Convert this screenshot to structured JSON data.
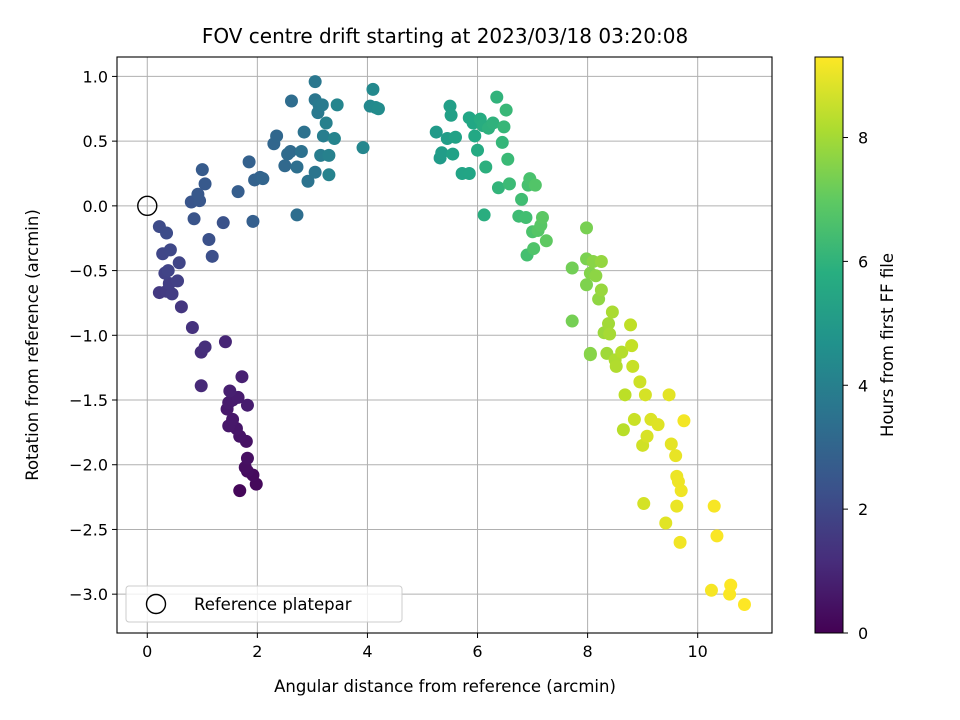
{
  "chart_data": {
    "type": "scatter",
    "title": "FOV centre drift starting at 2023/03/18 03:20:08",
    "xlabel": "Angular distance from reference (arcmin)",
    "ylabel": "Rotation from reference (arcmin)",
    "xlim": [
      -0.55,
      11.35
    ],
    "ylim": [
      -3.3,
      1.15
    ],
    "xticks": [
      0,
      2,
      4,
      6,
      8,
      10
    ],
    "xtick_labels": [
      "0",
      "2",
      "4",
      "6",
      "8",
      "10"
    ],
    "yticks": [
      1.0,
      0.5,
      0.0,
      -0.5,
      -1.0,
      -1.5,
      -2.0,
      -2.5,
      -3.0
    ],
    "ytick_labels": [
      "1.0",
      "0.5",
      "0.0",
      "−0.5",
      "−1.0",
      "−1.5",
      "−2.0",
      "−2.5",
      "−3.0"
    ],
    "grid": true,
    "colormap": "viridis",
    "colorbar": {
      "label": "Hours from first FF file",
      "range": [
        0,
        9.3
      ],
      "ticks": [
        0,
        2,
        4,
        6,
        8
      ],
      "tick_labels": [
        "0",
        "2",
        "4",
        "6",
        "8"
      ]
    },
    "reference_point": {
      "x": 0,
      "y": 0,
      "label": "Reference platepar"
    },
    "legend": {
      "location": "lower-left",
      "entries": [
        "Reference platepar"
      ]
    },
    "points": [
      {
        "x": 1.68,
        "y": -2.2,
        "t": 0.15
      },
      {
        "x": 1.98,
        "y": -2.15,
        "t": 0.2
      },
      {
        "x": 1.92,
        "y": -2.08,
        "t": 0.25
      },
      {
        "x": 1.82,
        "y": -2.05,
        "t": 0.3
      },
      {
        "x": 1.78,
        "y": -2.02,
        "t": 0.35
      },
      {
        "x": 1.82,
        "y": -1.95,
        "t": 0.4
      },
      {
        "x": 1.8,
        "y": -1.82,
        "t": 0.45
      },
      {
        "x": 1.68,
        "y": -1.78,
        "t": 0.5
      },
      {
        "x": 1.62,
        "y": -1.72,
        "t": 0.55
      },
      {
        "x": 1.48,
        "y": -1.7,
        "t": 0.6
      },
      {
        "x": 1.55,
        "y": -1.65,
        "t": 0.62
      },
      {
        "x": 1.45,
        "y": -1.57,
        "t": 0.65
      },
      {
        "x": 1.48,
        "y": -1.52,
        "t": 0.68
      },
      {
        "x": 1.55,
        "y": -1.5,
        "t": 0.7
      },
      {
        "x": 1.65,
        "y": -1.48,
        "t": 0.72
      },
      {
        "x": 1.82,
        "y": -1.54,
        "t": 0.75
      },
      {
        "x": 1.5,
        "y": -1.43,
        "t": 0.8
      },
      {
        "x": 1.72,
        "y": -1.32,
        "t": 0.85
      },
      {
        "x": 1.42,
        "y": -1.05,
        "t": 1.0
      },
      {
        "x": 0.98,
        "y": -1.39,
        "t": 1.1
      },
      {
        "x": 0.98,
        "y": -1.13,
        "t": 1.2
      },
      {
        "x": 1.05,
        "y": -1.09,
        "t": 1.25
      },
      {
        "x": 0.82,
        "y": -0.94,
        "t": 1.35
      },
      {
        "x": 0.62,
        "y": -0.78,
        "t": 1.45
      },
      {
        "x": 0.22,
        "y": -0.67,
        "t": 1.55
      },
      {
        "x": 0.35,
        "y": -0.66,
        "t": 1.6
      },
      {
        "x": 0.45,
        "y": -0.68,
        "t": 1.65
      },
      {
        "x": 0.4,
        "y": -0.6,
        "t": 1.7
      },
      {
        "x": 0.55,
        "y": -0.58,
        "t": 1.75
      },
      {
        "x": 0.32,
        "y": -0.52,
        "t": 1.8
      },
      {
        "x": 0.38,
        "y": -0.5,
        "t": 1.85
      },
      {
        "x": 0.58,
        "y": -0.44,
        "t": 1.9
      },
      {
        "x": 0.28,
        "y": -0.37,
        "t": 1.95
      },
      {
        "x": 0.42,
        "y": -0.34,
        "t": 2.0
      },
      {
        "x": 0.22,
        "y": -0.16,
        "t": 2.1
      },
      {
        "x": 0.35,
        "y": -0.21,
        "t": 2.15
      },
      {
        "x": 1.18,
        "y": -0.39,
        "t": 2.25
      },
      {
        "x": 1.12,
        "y": -0.26,
        "t": 2.3
      },
      {
        "x": 1.38,
        "y": -0.13,
        "t": 2.35
      },
      {
        "x": 0.85,
        "y": -0.1,
        "t": 2.4
      },
      {
        "x": 0.8,
        "y": 0.03,
        "t": 2.45
      },
      {
        "x": 0.95,
        "y": 0.04,
        "t": 2.5
      },
      {
        "x": 0.92,
        "y": 0.09,
        "t": 2.55
      },
      {
        "x": 1.05,
        "y": 0.17,
        "t": 2.6
      },
      {
        "x": 1.0,
        "y": 0.28,
        "t": 2.65
      },
      {
        "x": 1.65,
        "y": 0.11,
        "t": 2.75
      },
      {
        "x": 1.92,
        "y": -0.12,
        "t": 2.8
      },
      {
        "x": 1.85,
        "y": 0.34,
        "t": 2.85
      },
      {
        "x": 1.95,
        "y": 0.2,
        "t": 2.9
      },
      {
        "x": 2.05,
        "y": 0.22,
        "t": 2.95
      },
      {
        "x": 2.1,
        "y": 0.21,
        "t": 3.0
      },
      {
        "x": 2.3,
        "y": 0.48,
        "t": 3.05
      },
      {
        "x": 2.35,
        "y": 0.54,
        "t": 3.1
      },
      {
        "x": 2.5,
        "y": 0.31,
        "t": 3.15
      },
      {
        "x": 2.6,
        "y": 0.42,
        "t": 3.2
      },
      {
        "x": 2.55,
        "y": 0.4,
        "t": 3.25
      },
      {
        "x": 2.62,
        "y": 0.81,
        "t": 3.3
      },
      {
        "x": 2.72,
        "y": -0.07,
        "t": 3.35
      },
      {
        "x": 2.72,
        "y": 0.3,
        "t": 3.4
      },
      {
        "x": 2.8,
        "y": 0.42,
        "t": 3.45
      },
      {
        "x": 2.85,
        "y": 0.57,
        "t": 3.5
      },
      {
        "x": 2.92,
        "y": 0.19,
        "t": 3.55
      },
      {
        "x": 3.05,
        "y": 0.26,
        "t": 3.6
      },
      {
        "x": 3.05,
        "y": 0.82,
        "t": 3.65
      },
      {
        "x": 3.05,
        "y": 0.96,
        "t": 3.7
      },
      {
        "x": 3.1,
        "y": 0.72,
        "t": 3.75
      },
      {
        "x": 3.12,
        "y": 0.78,
        "t": 3.8
      },
      {
        "x": 3.18,
        "y": 0.78,
        "t": 3.85
      },
      {
        "x": 3.15,
        "y": 0.39,
        "t": 3.9
      },
      {
        "x": 3.2,
        "y": 0.54,
        "t": 3.95
      },
      {
        "x": 3.25,
        "y": 0.64,
        "t": 4.0
      },
      {
        "x": 3.3,
        "y": 0.39,
        "t": 4.05
      },
      {
        "x": 3.3,
        "y": 0.24,
        "t": 4.1
      },
      {
        "x": 3.4,
        "y": 0.52,
        "t": 4.15
      },
      {
        "x": 3.45,
        "y": 0.78,
        "t": 4.2
      },
      {
        "x": 3.92,
        "y": 0.45,
        "t": 4.25
      },
      {
        "x": 4.05,
        "y": 0.77,
        "t": 4.3
      },
      {
        "x": 4.1,
        "y": 0.9,
        "t": 4.35
      },
      {
        "x": 4.15,
        "y": 0.76,
        "t": 4.4
      },
      {
        "x": 4.2,
        "y": 0.75,
        "t": 4.45
      },
      {
        "x": 5.25,
        "y": 0.57,
        "t": 5.0
      },
      {
        "x": 5.32,
        "y": 0.37,
        "t": 5.05
      },
      {
        "x": 5.35,
        "y": 0.41,
        "t": 5.1
      },
      {
        "x": 5.45,
        "y": 0.52,
        "t": 5.15
      },
      {
        "x": 5.5,
        "y": 0.77,
        "t": 5.2
      },
      {
        "x": 5.52,
        "y": 0.7,
        "t": 5.25
      },
      {
        "x": 5.55,
        "y": 0.4,
        "t": 5.3
      },
      {
        "x": 5.6,
        "y": 0.53,
        "t": 5.35
      },
      {
        "x": 5.72,
        "y": 0.25,
        "t": 5.4
      },
      {
        "x": 5.85,
        "y": 0.25,
        "t": 5.45
      },
      {
        "x": 5.85,
        "y": 0.68,
        "t": 5.5
      },
      {
        "x": 5.92,
        "y": 0.64,
        "t": 5.55
      },
      {
        "x": 5.95,
        "y": 0.54,
        "t": 5.6
      },
      {
        "x": 6.0,
        "y": 0.43,
        "t": 5.65
      },
      {
        "x": 6.05,
        "y": 0.67,
        "t": 5.7
      },
      {
        "x": 6.1,
        "y": 0.62,
        "t": 5.75
      },
      {
        "x": 6.12,
        "y": -0.07,
        "t": 5.8
      },
      {
        "x": 6.15,
        "y": 0.3,
        "t": 5.85
      },
      {
        "x": 6.2,
        "y": 0.6,
        "t": 5.9
      },
      {
        "x": 6.28,
        "y": 0.64,
        "t": 5.95
      },
      {
        "x": 6.35,
        "y": 0.84,
        "t": 6.0
      },
      {
        "x": 6.38,
        "y": 0.14,
        "t": 6.05
      },
      {
        "x": 6.45,
        "y": 0.49,
        "t": 6.1
      },
      {
        "x": 6.48,
        "y": 0.61,
        "t": 6.15
      },
      {
        "x": 6.52,
        "y": 0.74,
        "t": 6.2
      },
      {
        "x": 6.55,
        "y": 0.36,
        "t": 6.25
      },
      {
        "x": 6.58,
        "y": 0.17,
        "t": 6.3
      },
      {
        "x": 6.75,
        "y": -0.08,
        "t": 6.35
      },
      {
        "x": 6.8,
        "y": 0.05,
        "t": 6.4
      },
      {
        "x": 6.88,
        "y": -0.09,
        "t": 6.45
      },
      {
        "x": 6.9,
        "y": -0.38,
        "t": 6.5
      },
      {
        "x": 6.92,
        "y": 0.16,
        "t": 6.55
      },
      {
        "x": 6.95,
        "y": 0.21,
        "t": 6.6
      },
      {
        "x": 7.0,
        "y": -0.2,
        "t": 6.65
      },
      {
        "x": 7.02,
        "y": -0.33,
        "t": 6.7
      },
      {
        "x": 7.05,
        "y": 0.16,
        "t": 6.75
      },
      {
        "x": 7.1,
        "y": -0.19,
        "t": 6.8
      },
      {
        "x": 7.15,
        "y": -0.15,
        "t": 6.85
      },
      {
        "x": 7.18,
        "y": -0.09,
        "t": 6.9
      },
      {
        "x": 7.25,
        "y": -0.27,
        "t": 6.95
      },
      {
        "x": 7.72,
        "y": -0.48,
        "t": 7.3
      },
      {
        "x": 7.72,
        "y": -0.89,
        "t": 7.35
      },
      {
        "x": 7.98,
        "y": -0.17,
        "t": 7.4
      },
      {
        "x": 7.98,
        "y": -0.41,
        "t": 7.45
      },
      {
        "x": 7.98,
        "y": -0.61,
        "t": 7.5
      },
      {
        "x": 8.05,
        "y": -0.52,
        "t": 7.55
      },
      {
        "x": 8.05,
        "y": -1.14,
        "t": 7.6
      },
      {
        "x": 8.05,
        "y": -1.15,
        "t": 7.62
      },
      {
        "x": 8.1,
        "y": -0.43,
        "t": 7.65
      },
      {
        "x": 8.15,
        "y": -0.54,
        "t": 7.7
      },
      {
        "x": 8.2,
        "y": -0.72,
        "t": 7.75
      },
      {
        "x": 8.25,
        "y": -0.43,
        "t": 7.8
      },
      {
        "x": 8.25,
        "y": -0.65,
        "t": 7.85
      },
      {
        "x": 8.3,
        "y": -0.98,
        "t": 7.9
      },
      {
        "x": 8.35,
        "y": -1.14,
        "t": 7.95
      },
      {
        "x": 8.38,
        "y": -0.91,
        "t": 8.0
      },
      {
        "x": 8.4,
        "y": -0.99,
        "t": 8.05
      },
      {
        "x": 8.45,
        "y": -0.82,
        "t": 8.1
      },
      {
        "x": 8.5,
        "y": -1.19,
        "t": 8.15
      },
      {
        "x": 8.52,
        "y": -1.24,
        "t": 8.2
      },
      {
        "x": 8.62,
        "y": -1.13,
        "t": 8.25
      },
      {
        "x": 8.65,
        "y": -1.73,
        "t": 8.3
      },
      {
        "x": 8.68,
        "y": -1.46,
        "t": 8.35
      },
      {
        "x": 8.78,
        "y": -0.92,
        "t": 8.4
      },
      {
        "x": 8.8,
        "y": -1.08,
        "t": 8.45
      },
      {
        "x": 8.82,
        "y": -1.24,
        "t": 8.5
      },
      {
        "x": 8.85,
        "y": -1.65,
        "t": 8.55
      },
      {
        "x": 8.95,
        "y": -1.36,
        "t": 8.6
      },
      {
        "x": 9.0,
        "y": -1.85,
        "t": 8.65
      },
      {
        "x": 9.02,
        "y": -2.3,
        "t": 8.7
      },
      {
        "x": 9.05,
        "y": -1.46,
        "t": 8.72
      },
      {
        "x": 9.08,
        "y": -1.78,
        "t": 8.75
      },
      {
        "x": 9.15,
        "y": -1.65,
        "t": 8.8
      },
      {
        "x": 9.28,
        "y": -1.69,
        "t": 8.85
      },
      {
        "x": 9.42,
        "y": -2.45,
        "t": 8.9
      },
      {
        "x": 9.48,
        "y": -1.46,
        "t": 8.92
      },
      {
        "x": 9.52,
        "y": -1.84,
        "t": 8.95
      },
      {
        "x": 9.6,
        "y": -1.93,
        "t": 9.0
      },
      {
        "x": 9.62,
        "y": -2.32,
        "t": 9.02
      },
      {
        "x": 9.62,
        "y": -2.09,
        "t": 9.05
      },
      {
        "x": 9.65,
        "y": -2.13,
        "t": 9.08
      },
      {
        "x": 9.7,
        "y": -2.2,
        "t": 9.1
      },
      {
        "x": 9.68,
        "y": -2.6,
        "t": 9.12
      },
      {
        "x": 9.75,
        "y": -1.66,
        "t": 9.15
      },
      {
        "x": 10.25,
        "y": -2.97,
        "t": 9.2
      },
      {
        "x": 10.3,
        "y": -2.32,
        "t": 9.22
      },
      {
        "x": 10.35,
        "y": -2.55,
        "t": 9.24
      },
      {
        "x": 10.58,
        "y": -3.0,
        "t": 9.26
      },
      {
        "x": 10.6,
        "y": -2.93,
        "t": 9.28
      },
      {
        "x": 10.85,
        "y": -3.08,
        "t": 9.3
      }
    ]
  }
}
